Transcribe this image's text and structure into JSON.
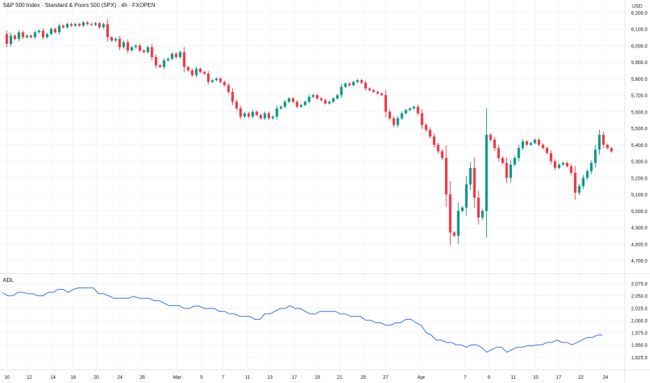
{
  "title": "S&P 500 Index · Standard & Poors 500 (SPX) · 4h · FXOPEN",
  "currency": "USD",
  "colors": {
    "up": "#089981",
    "down": "#f23645",
    "adl": "#2962ff",
    "grid": "#f0f3fa",
    "text": "#131722",
    "axis_border": "#e0e3eb"
  },
  "chart_data": [
    {
      "type": "candlestick",
      "title": "S&P 500 Index · Standard & Poors 500 (SPX) · 4h · FXOPEN",
      "ylabel": "USD",
      "ylim": [
        4650,
        6250
      ],
      "yticks": [
        4700,
        4800,
        4900,
        5000,
        5100,
        5200,
        5300,
        5400,
        5500,
        5600,
        5700,
        5800,
        5900,
        6000,
        6100,
        6200
      ],
      "ytick_labels": [
        "4,700.0",
        "4,800.0",
        "4,900.0",
        "5,000.0",
        "5,100.0",
        "5,200.0",
        "5,300.0",
        "5,400.0",
        "5,500.0",
        "5,600.0",
        "5,700.0",
        "5,800.0",
        "5,900.0",
        "6,000.0",
        "6,100.0",
        "6,200.0"
      ],
      "xtick_labels": [
        "10",
        "12",
        "14",
        "18",
        "20",
        "24",
        "26",
        "Mar",
        "5",
        "7",
        "11",
        "13",
        "17",
        "19",
        "21",
        "25",
        "27",
        "Apr",
        "7",
        "9",
        "11",
        "15",
        "17",
        "22",
        "24"
      ],
      "close_path": [
        [
          0,
          6070
        ],
        [
          4,
          6010
        ],
        [
          8,
          6060
        ],
        [
          12,
          6040
        ],
        [
          16,
          6080
        ],
        [
          20,
          6050
        ],
        [
          24,
          6060
        ],
        [
          28,
          6050
        ],
        [
          32,
          6080
        ],
        [
          36,
          6090
        ],
        [
          40,
          6050
        ],
        [
          44,
          6070
        ],
        [
          48,
          6100
        ],
        [
          52,
          6080
        ],
        [
          56,
          6120
        ],
        [
          60,
          6110
        ],
        [
          64,
          6130
        ],
        [
          68,
          6120
        ],
        [
          72,
          6130
        ],
        [
          76,
          6120
        ],
        [
          80,
          6140
        ],
        [
          84,
          6130
        ],
        [
          88,
          6125
        ],
        [
          92,
          6135
        ],
        [
          96,
          6110
        ],
        [
          100,
          6130
        ],
        [
          104,
          6050
        ],
        [
          108,
          6030
        ],
        [
          112,
          6040
        ],
        [
          116,
          5990
        ],
        [
          120,
          6020
        ],
        [
          124,
          5970
        ],
        [
          128,
          5990
        ],
        [
          132,
          6000
        ],
        [
          136,
          5970
        ],
        [
          140,
          5960
        ],
        [
          144,
          5990
        ],
        [
          148,
          5930
        ],
        [
          152,
          5880
        ],
        [
          156,
          5870
        ],
        [
          160,
          5910
        ],
        [
          164,
          5920
        ],
        [
          168,
          5950
        ],
        [
          172,
          5930
        ],
        [
          176,
          5960
        ],
        [
          180,
          5870
        ],
        [
          184,
          5850
        ],
        [
          188,
          5820
        ],
        [
          192,
          5860
        ],
        [
          196,
          5840
        ],
        [
          200,
          5830
        ],
        [
          204,
          5780
        ],
        [
          208,
          5790
        ],
        [
          212,
          5800
        ],
        [
          216,
          5780
        ],
        [
          220,
          5760
        ],
        [
          224,
          5720
        ],
        [
          228,
          5660
        ],
        [
          232,
          5620
        ],
        [
          236,
          5570
        ],
        [
          240,
          5590
        ],
        [
          244,
          5570
        ],
        [
          248,
          5600
        ],
        [
          252,
          5580
        ],
        [
          256,
          5560
        ],
        [
          260,
          5590
        ],
        [
          264,
          5560
        ],
        [
          268,
          5570
        ],
        [
          272,
          5620
        ],
        [
          276,
          5630
        ],
        [
          280,
          5660
        ],
        [
          284,
          5680
        ],
        [
          288,
          5660
        ],
        [
          292,
          5630
        ],
        [
          296,
          5640
        ],
        [
          300,
          5660
        ],
        [
          304,
          5690
        ],
        [
          308,
          5700
        ],
        [
          312,
          5680
        ],
        [
          316,
          5670
        ],
        [
          320,
          5650
        ],
        [
          324,
          5660
        ],
        [
          328,
          5680
        ],
        [
          332,
          5700
        ],
        [
          336,
          5750
        ],
        [
          340,
          5770
        ],
        [
          344,
          5760
        ],
        [
          348,
          5780
        ],
        [
          352,
          5790
        ],
        [
          356,
          5775
        ],
        [
          360,
          5740
        ],
        [
          364,
          5730
        ],
        [
          368,
          5720
        ],
        [
          372,
          5710
        ],
        [
          376,
          5700
        ],
        [
          380,
          5600
        ],
        [
          384,
          5560
        ],
        [
          388,
          5520
        ],
        [
          392,
          5560
        ],
        [
          396,
          5590
        ],
        [
          400,
          5610
        ],
        [
          404,
          5620
        ],
        [
          408,
          5630
        ],
        [
          412,
          5590
        ],
        [
          416,
          5520
        ],
        [
          420,
          5490
        ],
        [
          424,
          5450
        ],
        [
          428,
          5400
        ],
        [
          432,
          5360
        ],
        [
          436,
          5320
        ],
        [
          440,
          5100
        ],
        [
          444,
          4870
        ],
        [
          448,
          4850
        ],
        [
          452,
          5000
        ],
        [
          456,
          5020
        ],
        [
          460,
          5160
        ],
        [
          464,
          5260
        ],
        [
          468,
          5080
        ],
        [
          472,
          4960
        ],
        [
          476,
          5000
        ],
        [
          480,
          5460
        ],
        [
          484,
          5430
        ],
        [
          488,
          5380
        ],
        [
          492,
          5320
        ],
        [
          496,
          5290
        ],
        [
          500,
          5200
        ],
        [
          504,
          5280
        ],
        [
          508,
          5320
        ],
        [
          512,
          5380
        ],
        [
          516,
          5420
        ],
        [
          520,
          5400
        ],
        [
          524,
          5410
        ],
        [
          528,
          5430
        ],
        [
          532,
          5400
        ],
        [
          536,
          5380
        ],
        [
          540,
          5350
        ],
        [
          544,
          5300
        ],
        [
          548,
          5260
        ],
        [
          552,
          5280
        ],
        [
          556,
          5290
        ],
        [
          560,
          5270
        ],
        [
          564,
          5230
        ],
        [
          568,
          5110
        ],
        [
          572,
          5150
        ],
        [
          576,
          5200
        ],
        [
          580,
          5240
        ],
        [
          584,
          5290
        ],
        [
          588,
          5370
        ],
        [
          592,
          5460
        ],
        [
          596,
          5400
        ],
        [
          600,
          5380
        ],
        [
          604,
          5360
        ]
      ],
      "data_note": "close_path: [time index (4h bars), close price in USD]"
    },
    {
      "type": "line",
      "title": "ADL",
      "ylim": [
        1912,
        2085
      ],
      "yticks": [
        1925,
        1950,
        1975,
        2000,
        2025,
        2050,
        2075
      ],
      "ytick_labels": [
        "1,925.0",
        "1,950.0",
        "1,975.0",
        "2,000.0",
        "2,025.0",
        "2,050.0",
        "2,075.0"
      ],
      "series": [
        {
          "name": "ADL",
          "points": [
            [
              0,
              2056
            ],
            [
              5,
              2050
            ],
            [
              10,
              2050
            ],
            [
              15,
              2057
            ],
            [
              20,
              2057
            ],
            [
              25,
              2054
            ],
            [
              30,
              2054
            ],
            [
              35,
              2050
            ],
            [
              40,
              2050
            ],
            [
              45,
              2057
            ],
            [
              50,
              2057
            ],
            [
              55,
              2063
            ],
            [
              60,
              2063
            ],
            [
              65,
              2057
            ],
            [
              70,
              2063
            ],
            [
              75,
              2066
            ],
            [
              80,
              2066
            ],
            [
              85,
              2066
            ],
            [
              90,
              2066
            ],
            [
              95,
              2054
            ],
            [
              100,
              2054
            ],
            [
              105,
              2050
            ],
            [
              110,
              2045
            ],
            [
              115,
              2045
            ],
            [
              120,
              2045
            ],
            [
              125,
              2045
            ],
            [
              130,
              2049
            ],
            [
              135,
              2045
            ],
            [
              140,
              2045
            ],
            [
              145,
              2045
            ],
            [
              150,
              2040
            ],
            [
              155,
              2040
            ],
            [
              160,
              2035
            ],
            [
              165,
              2030
            ],
            [
              170,
              2030
            ],
            [
              175,
              2030
            ],
            [
              180,
              2024
            ],
            [
              185,
              2024
            ],
            [
              190,
              2029
            ],
            [
              195,
              2029
            ],
            [
              200,
              2024
            ],
            [
              205,
              2024
            ],
            [
              210,
              2024
            ],
            [
              215,
              2018
            ],
            [
              220,
              2018
            ],
            [
              225,
              2013
            ],
            [
              230,
              2013
            ],
            [
              235,
              2008
            ],
            [
              240,
              2008
            ],
            [
              245,
              2008
            ],
            [
              250,
              2002
            ],
            [
              255,
              2002
            ],
            [
              260,
              2013
            ],
            [
              265,
              2013
            ],
            [
              270,
              2018
            ],
            [
              275,
              2024
            ],
            [
              280,
              2024
            ],
            [
              285,
              2030
            ],
            [
              290,
              2024
            ],
            [
              295,
              2024
            ],
            [
              300,
              2018
            ],
            [
              305,
              2013
            ],
            [
              310,
              2013
            ],
            [
              315,
              2018
            ],
            [
              320,
              2018
            ],
            [
              325,
              2018
            ],
            [
              330,
              2018
            ],
            [
              335,
              2013
            ],
            [
              340,
              2013
            ],
            [
              345,
              2008
            ],
            [
              350,
              2008
            ],
            [
              355,
              2008
            ],
            [
              360,
              2000
            ],
            [
              365,
              2000
            ],
            [
              370,
              1995
            ],
            [
              375,
              1995
            ],
            [
              380,
              1990
            ],
            [
              385,
              1990
            ],
            [
              390,
              1995
            ],
            [
              395,
              1995
            ],
            [
              400,
              2002
            ],
            [
              405,
              2002
            ],
            [
              410,
              1995
            ],
            [
              415,
              1990
            ],
            [
              420,
              1975
            ],
            [
              425,
              1970
            ],
            [
              430,
              1960
            ],
            [
              435,
              1960
            ],
            [
              440,
              1955
            ],
            [
              445,
              1955
            ],
            [
              450,
              1950
            ],
            [
              455,
              1950
            ],
            [
              460,
              1945
            ],
            [
              465,
              1950
            ],
            [
              470,
              1950
            ],
            [
              475,
              1945
            ],
            [
              480,
              1935
            ],
            [
              485,
              1940
            ],
            [
              490,
              1945
            ],
            [
              495,
              1945
            ],
            [
              500,
              1935
            ],
            [
              505,
              1940
            ],
            [
              510,
              1945
            ],
            [
              515,
              1945
            ],
            [
              520,
              1948
            ],
            [
              525,
              1948
            ],
            [
              530,
              1950
            ],
            [
              535,
              1950
            ],
            [
              540,
              1955
            ],
            [
              545,
              1955
            ],
            [
              550,
              1960
            ],
            [
              555,
              1955
            ],
            [
              560,
              1955
            ],
            [
              565,
              1950
            ],
            [
              570,
              1955
            ],
            [
              575,
              1960
            ],
            [
              580,
              1965
            ],
            [
              585,
              1965
            ],
            [
              590,
              1970
            ],
            [
              595,
              1970
            ]
          ]
        }
      ]
    }
  ]
}
